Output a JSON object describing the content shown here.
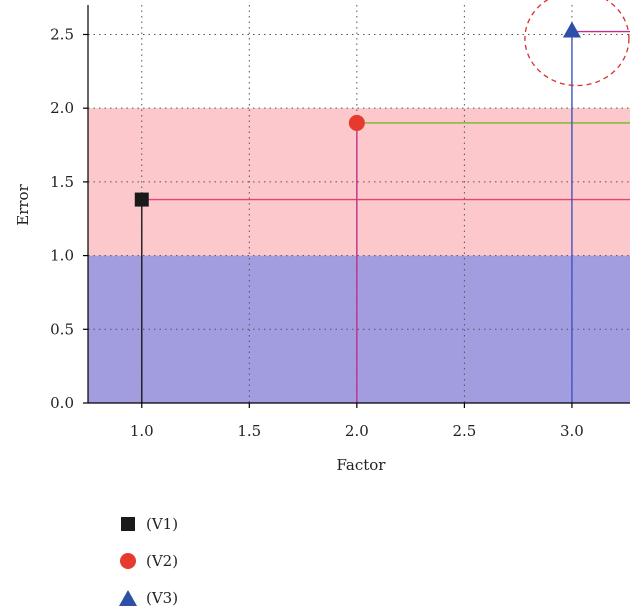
{
  "chart_data": {
    "type": "scatter",
    "title": "",
    "xlabel": "Factor",
    "ylabel": "Error",
    "xlim": [
      0.75,
      3.27
    ],
    "ylim": [
      0.0,
      2.7
    ],
    "xticks": [
      "1.0",
      "1.5",
      "2.0",
      "2.5",
      "3.0"
    ],
    "yticks": [
      "0.0",
      "0.5",
      "1.0",
      "1.5",
      "2.0",
      "2.5"
    ],
    "grid": true,
    "bands": [
      {
        "y0": 0.0,
        "y1": 1.0,
        "color": "#a19ddf"
      },
      {
        "y0": 1.0,
        "y1": 2.0,
        "color": "#fdc8cb"
      }
    ],
    "series": [
      {
        "name": "(V1)",
        "x": 1.0,
        "y": 1.38,
        "marker": "square",
        "color": "#1a1a1a",
        "stem_color": "#1a1a1a",
        "line_color": "#e0457a"
      },
      {
        "name": "(V2)",
        "x": 2.0,
        "y": 1.9,
        "marker": "circle",
        "color": "#e63a2e",
        "stem_color": "#c0308a",
        "line_color": "#7ab52a"
      },
      {
        "name": "(V3)",
        "x": 3.0,
        "y": 2.52,
        "marker": "triangle",
        "color": "#2f4ea8",
        "stem_color": "#3b55c8",
        "line_color": "#c0308a"
      }
    ],
    "annotation": {
      "type": "dashed-circle",
      "x": 3.0,
      "y": 2.52,
      "color": "#d83030"
    }
  }
}
